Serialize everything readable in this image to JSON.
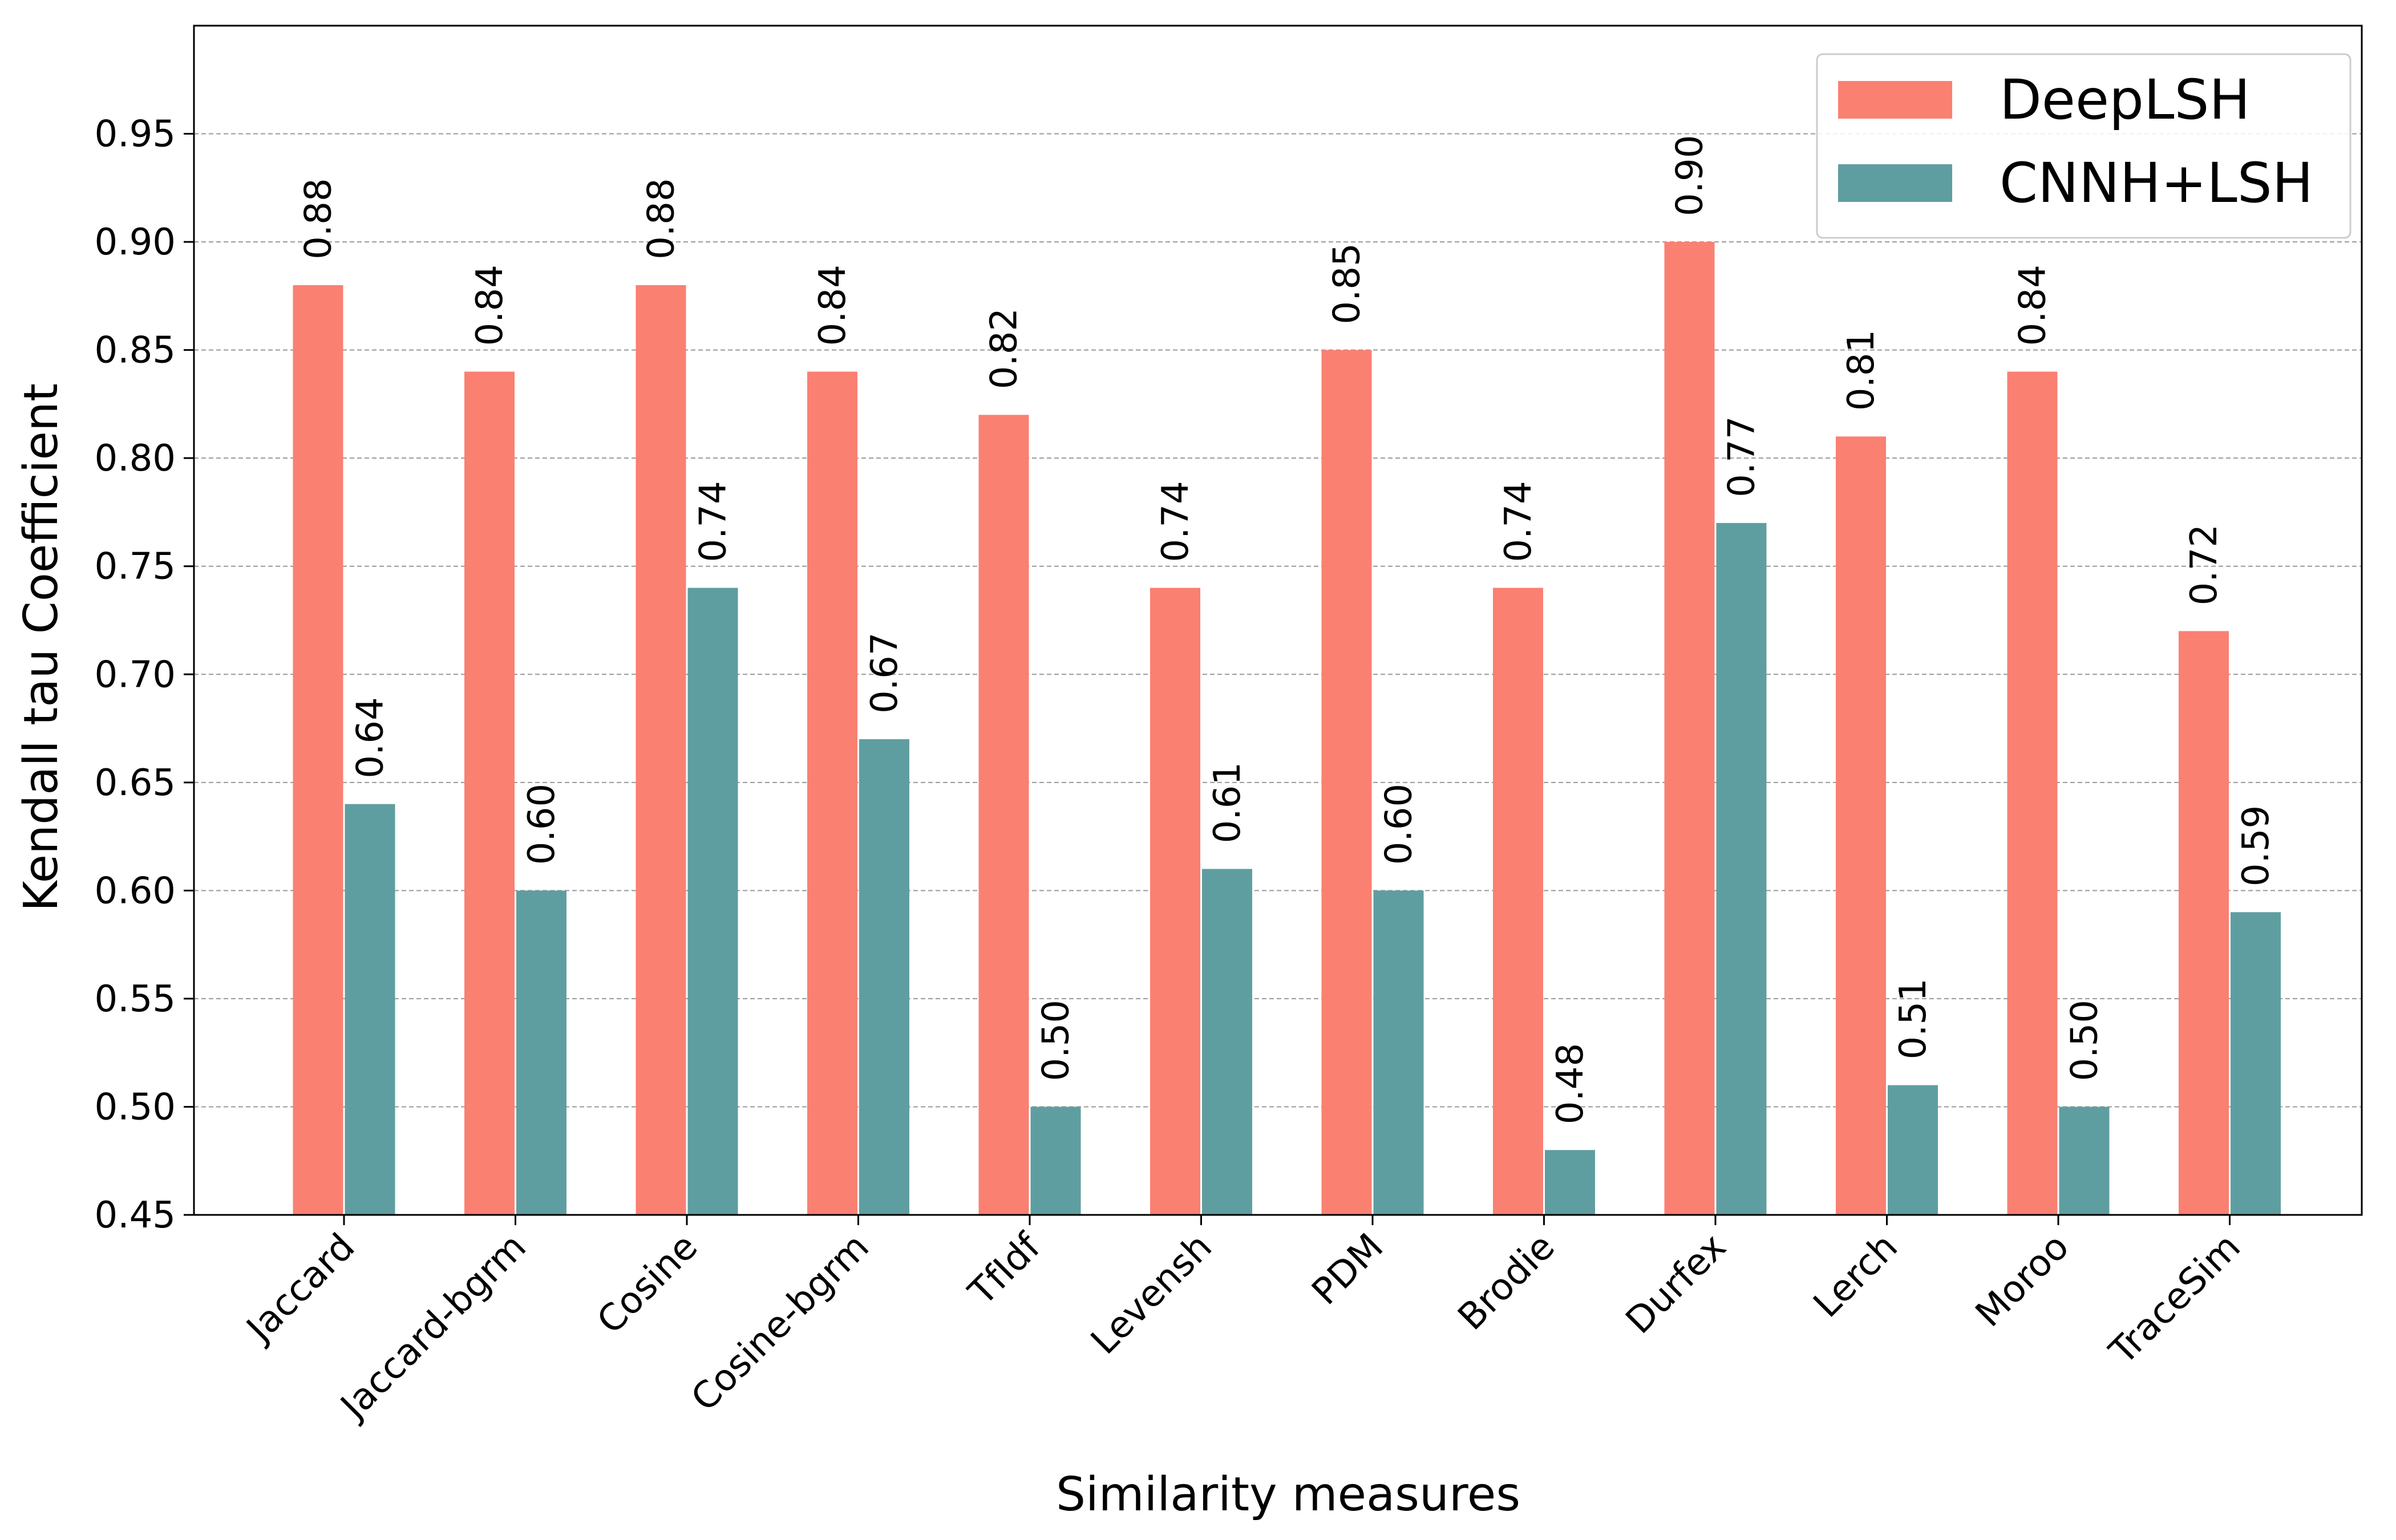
{
  "chart_data": {
    "type": "bar",
    "title": "",
    "xlabel": "Similarity measures",
    "ylabel": "Kendall tau Coefficient",
    "ylim": [
      0.45,
      1.0
    ],
    "yticks": [
      0.45,
      0.5,
      0.55,
      0.6,
      0.65,
      0.7,
      0.75,
      0.8,
      0.85,
      0.9,
      0.95
    ],
    "ytick_labels": [
      "0.45",
      "0.50",
      "0.55",
      "0.60",
      "0.65",
      "0.70",
      "0.75",
      "0.80",
      "0.85",
      "0.90",
      "0.95"
    ],
    "grid": "horizontal dashed",
    "legend_position": "top-right",
    "categories": [
      "Jaccard",
      "Jaccard-bgrm",
      "Cosine",
      "Cosine-bgrm",
      "TfIdf",
      "Levensh",
      "PDM",
      "Brodie",
      "Durfex",
      "Lerch",
      "Moroo",
      "TraceSim"
    ],
    "series": [
      {
        "name": "DeepLSH",
        "color": "#fa8072",
        "values": [
          0.88,
          0.84,
          0.88,
          0.84,
          0.82,
          0.74,
          0.85,
          0.74,
          0.9,
          0.81,
          0.84,
          0.72
        ],
        "labels": [
          "0.88",
          "0.84",
          "0.88",
          "0.84",
          "0.82",
          "0.74",
          "0.85",
          "0.74",
          "0.90",
          "0.81",
          "0.84",
          "0.72"
        ]
      },
      {
        "name": "CNNH+LSH",
        "color": "#5f9ea0",
        "values": [
          0.64,
          0.6,
          0.74,
          0.67,
          0.5,
          0.61,
          0.6,
          0.48,
          0.77,
          0.51,
          0.5,
          0.59
        ],
        "labels": [
          "0.64",
          "0.60",
          "0.74",
          "0.67",
          "0.50",
          "0.61",
          "0.60",
          "0.48",
          "0.77",
          "0.51",
          "0.50",
          "0.59"
        ]
      }
    ]
  }
}
